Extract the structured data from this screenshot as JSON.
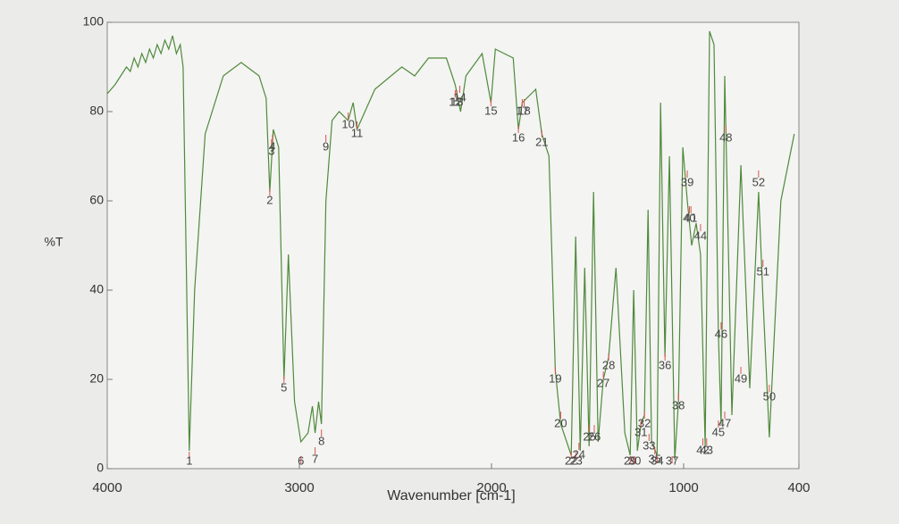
{
  "chart_data": {
    "type": "line",
    "xlabel": "Wavenumber [cm-1]",
    "ylabel": "%T",
    "color": "#4f8a3c",
    "peak_color": "#d9534f",
    "xlim": [
      4000,
      400
    ],
    "xticks": [
      4000,
      3000,
      2000,
      1000,
      400
    ],
    "ylim": [
      0,
      100
    ],
    "yticks": [
      0,
      20,
      40,
      60,
      80,
      100
    ],
    "x": [
      4000,
      3960,
      3930,
      3900,
      3880,
      3860,
      3840,
      3820,
      3800,
      3780,
      3760,
      3740,
      3720,
      3700,
      3680,
      3660,
      3640,
      3620,
      3605,
      3573,
      3545,
      3490,
      3396,
      3303,
      3210,
      3173,
      3154,
      3136,
      3108,
      3080,
      3057,
      3025,
      2992,
      2955,
      2932,
      2918,
      2900,
      2885,
      2862,
      2830,
      2793,
      2746,
      2720,
      2700,
      2607,
      2467,
      2400,
      2328,
      2235,
      2189,
      2161,
      2133,
      2049,
      2003,
      1980,
      1887,
      1860,
      1840,
      1770,
      1738,
      1701,
      1668,
      1640,
      1585,
      1562,
      1538,
      1515,
      1492,
      1469,
      1445,
      1418,
      1390,
      1352,
      1306,
      1278,
      1260,
      1241,
      1222,
      1204,
      1185,
      1167,
      1138,
      1120,
      1097,
      1074,
      1046,
      1027,
      1004,
      981,
      958,
      935,
      912,
      888,
      865,
      842,
      819,
      805,
      786,
      749,
      702,
      656,
      610,
      587,
      554,
      494,
      424
    ],
    "values": [
      84,
      86,
      88,
      90,
      89,
      92,
      90,
      93,
      91,
      94,
      92,
      95,
      93,
      96,
      94,
      97,
      93,
      95,
      90,
      4,
      40,
      75,
      88,
      91,
      88,
      83,
      62,
      76,
      72,
      20,
      48,
      15,
      6,
      8,
      14,
      8,
      15,
      10,
      60,
      78,
      80,
      78,
      82,
      76,
      85,
      90,
      88,
      92,
      92,
      86,
      80,
      88,
      93,
      82,
      94,
      92,
      76,
      82,
      85,
      75,
      70,
      22,
      10,
      3,
      52,
      4,
      45,
      5,
      62,
      6,
      20,
      25,
      45,
      8,
      3,
      40,
      4,
      10,
      12,
      58,
      6,
      3,
      82,
      25,
      70,
      2,
      15,
      72,
      60,
      50,
      55,
      48,
      5,
      98,
      95,
      30,
      10,
      88,
      12,
      68,
      18,
      62,
      38,
      7,
      60,
      75
    ],
    "peaks": [
      {
        "label": "1",
        "x": 3573,
        "y": 3
      },
      {
        "label": "2",
        "x": 3154,
        "y": 62
      },
      {
        "label": "3",
        "x": 3145,
        "y": 73
      },
      {
        "label": "4",
        "x": 3140,
        "y": 74
      },
      {
        "label": "5",
        "x": 3080,
        "y": 20
      },
      {
        "label": "6",
        "x": 2992,
        "y": 2
      },
      {
        "label": "7",
        "x": 2918,
        "y": 4
      },
      {
        "label": "8",
        "x": 2885,
        "y": 8
      },
      {
        "label": "9",
        "x": 2862,
        "y": 74
      },
      {
        "label": "10",
        "x": 2746,
        "y": 79
      },
      {
        "label": "11",
        "x": 2700,
        "y": 77
      },
      {
        "label": "12",
        "x": 2189,
        "y": 84
      },
      {
        "label": "13",
        "x": 2180,
        "y": 84
      },
      {
        "label": "14",
        "x": 2165,
        "y": 85
      },
      {
        "label": "15",
        "x": 2003,
        "y": 82
      },
      {
        "label": "16",
        "x": 1860,
        "y": 76
      },
      {
        "label": "17",
        "x": 1840,
        "y": 82
      },
      {
        "label": "18",
        "x": 1830,
        "y": 82
      },
      {
        "label": "19",
        "x": 1668,
        "y": 22
      },
      {
        "label": "20",
        "x": 1640,
        "y": 12
      },
      {
        "label": "21",
        "x": 1738,
        "y": 75
      },
      {
        "label": "22",
        "x": 1585,
        "y": 3
      },
      {
        "label": "23",
        "x": 1560,
        "y": 3
      },
      {
        "label": "24",
        "x": 1545,
        "y": 5
      },
      {
        "label": "25",
        "x": 1490,
        "y": 9
      },
      {
        "label": "26",
        "x": 1465,
        "y": 9
      },
      {
        "label": "27",
        "x": 1418,
        "y": 21
      },
      {
        "label": "28",
        "x": 1390,
        "y": 25
      },
      {
        "label": "29",
        "x": 1278,
        "y": 2
      },
      {
        "label": "30",
        "x": 1255,
        "y": 2
      },
      {
        "label": "31",
        "x": 1222,
        "y": 10
      },
      {
        "label": "32",
        "x": 1204,
        "y": 12
      },
      {
        "label": "33",
        "x": 1180,
        "y": 7
      },
      {
        "label": "34",
        "x": 1138,
        "y": 2
      },
      {
        "label": "35",
        "x": 1150,
        "y": 4
      },
      {
        "label": "36",
        "x": 1097,
        "y": 25
      },
      {
        "label": "37",
        "x": 1060,
        "y": 2
      },
      {
        "label": "38",
        "x": 1027,
        "y": 16
      },
      {
        "label": "39",
        "x": 981,
        "y": 66
      },
      {
        "label": "40",
        "x": 970,
        "y": 58
      },
      {
        "label": "41",
        "x": 962,
        "y": 58
      },
      {
        "label": "42",
        "x": 900,
        "y": 6
      },
      {
        "label": "43",
        "x": 880,
        "y": 6
      },
      {
        "label": "44",
        "x": 912,
        "y": 54
      },
      {
        "label": "45",
        "x": 819,
        "y": 10
      },
      {
        "label": "46",
        "x": 805,
        "y": 32
      },
      {
        "label": "47",
        "x": 786,
        "y": 12
      },
      {
        "label": "48",
        "x": 780,
        "y": 76
      },
      {
        "label": "49",
        "x": 702,
        "y": 22
      },
      {
        "label": "50",
        "x": 554,
        "y": 18
      },
      {
        "label": "51",
        "x": 587,
        "y": 46
      },
      {
        "label": "52",
        "x": 610,
        "y": 66
      }
    ]
  }
}
